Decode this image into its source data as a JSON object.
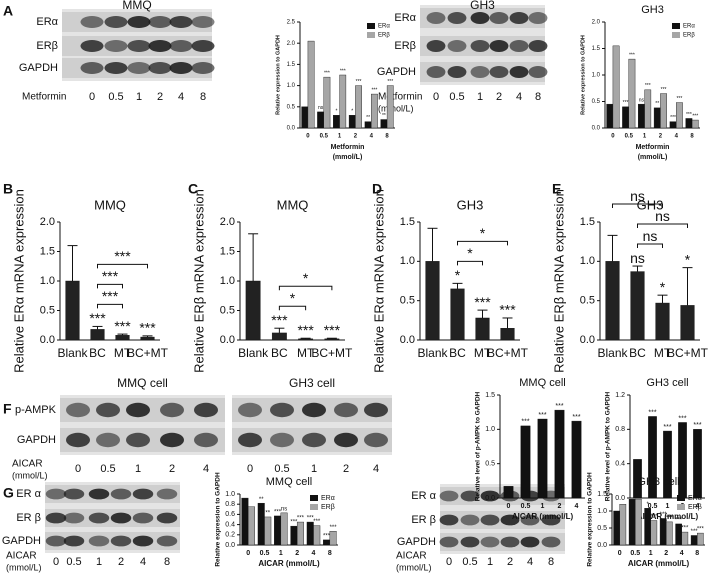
{
  "panel_letters": [
    "A",
    "B",
    "C",
    "D",
    "E",
    "F",
    "G"
  ],
  "blots": [
    {
      "title": "MMQ",
      "rows": [
        "ERα",
        "ERβ",
        "GAPDH"
      ],
      "treatment": [
        "Metformin"
      ],
      "lanes": [
        "0",
        "0.5",
        "1",
        "2",
        "4",
        "8"
      ]
    },
    {
      "title": "GH3",
      "rows": [
        "ERα",
        "ERβ",
        "GAPDH"
      ],
      "treatment": [
        "Metformin",
        "(mmol/L)"
      ],
      "lanes": [
        "0",
        "0.5",
        "1",
        "2",
        "4",
        "8"
      ]
    },
    {
      "title": "MMQ cell",
      "rows": [
        "p-AMPK",
        "GAPDH"
      ],
      "treatment": [
        "AICAR",
        "(mmol/L)"
      ],
      "lanes": [
        "0",
        "0.5",
        "1",
        "2",
        "4"
      ]
    },
    {
      "title": "GH3 cell",
      "lanes": [
        "0",
        "0.5",
        "1",
        "2",
        "4"
      ]
    },
    {
      "rows": [
        "ER α",
        "ER β",
        "GAPDH"
      ],
      "treatment": [
        "AICAR",
        "(mmol/L)"
      ],
      "lanes": [
        "0",
        "0.5",
        "1",
        "2",
        "4",
        "8"
      ]
    },
    {
      "rows": [
        "ER α",
        "ER β",
        "GAPDH"
      ],
      "treatment": [
        "AICAR",
        "(mmol/L)"
      ],
      "lanes": [
        "0",
        "0.5",
        "1",
        "2",
        "4",
        "8"
      ]
    }
  ],
  "chart_data": [
    {
      "type": "bar",
      "ylabel": "Relative expression to GAPDH",
      "xlabel": [
        "Metformin",
        "(mmol/L)"
      ],
      "categories": [
        "0",
        "0.5",
        "1",
        "2",
        "4",
        "8"
      ],
      "series": [
        {
          "name": "ERα",
          "color": "#111111",
          "values": [
            0.5,
            0.38,
            0.3,
            0.3,
            0.15,
            0.2
          ],
          "sig": [
            null,
            "ns",
            "*",
            "*",
            "**",
            "**"
          ]
        },
        {
          "name": "ERβ",
          "color": "#a6a6a6",
          "values": [
            2.05,
            1.2,
            1.25,
            1.0,
            0.8,
            1.0
          ],
          "sig": [
            null,
            "***",
            "***",
            "***",
            "***",
            "***"
          ]
        }
      ],
      "ylim": [
        0,
        2.5
      ],
      "yticks": [
        {
          "value": 0,
          "label": "0.0"
        },
        0.5,
        {
          "value": 1,
          "label": "1.0"
        },
        1.5,
        {
          "value": 2,
          "label": "2.0"
        },
        2.5
      ]
    },
    {
      "type": "bar",
      "title": "GH3",
      "ylabel": "Relative expression to GAPDH",
      "xlabel": [
        "Metformin",
        "(mmol/L)"
      ],
      "categories": [
        "0",
        "0.5",
        "1",
        "2",
        "4",
        "8"
      ],
      "series": [
        {
          "name": "ERα",
          "color": "#111111",
          "values": [
            0.45,
            0.4,
            0.45,
            0.38,
            0.12,
            0.18
          ],
          "sig": [
            null,
            "***",
            "ns",
            "**",
            "***",
            "***"
          ]
        },
        {
          "name": "ERβ",
          "color": "#a6a6a6",
          "values": [
            1.55,
            1.3,
            0.72,
            0.65,
            0.48,
            0.15
          ],
          "sig": [
            null,
            "***",
            "***",
            "***",
            "***",
            "***"
          ]
        }
      ],
      "ylim": [
        0,
        2
      ],
      "yticks": [
        {
          "value": 0,
          "label": "0.0"
        },
        0.5,
        {
          "value": 1,
          "label": "1.0"
        },
        1.5,
        {
          "value": 2,
          "label": "2.0"
        }
      ]
    },
    {
      "type": "bar",
      "title": "MMQ",
      "ylabel": "Relative ERα mRNA expression",
      "categories": [
        "Blank",
        "BC",
        "MT",
        "BC+MT"
      ],
      "color": "#222222",
      "values": [
        1.0,
        0.18,
        0.08,
        0.05
      ],
      "errors": [
        0.6,
        0.05,
        0.02,
        0.02
      ],
      "sig": [
        null,
        "***",
        "***",
        "***"
      ],
      "brackets": [
        {
          "from": 1,
          "to": 2,
          "label": "***"
        },
        {
          "from": 1,
          "to": 2,
          "label": "***"
        },
        {
          "from": 1,
          "to": 3,
          "label": "***"
        }
      ],
      "ylim": [
        0,
        2
      ],
      "yticks": [
        {
          "value": 0,
          "label": "0.0"
        },
        0.5,
        {
          "value": 1,
          "label": "1.0"
        },
        1.5,
        {
          "value": 2,
          "label": "2.0"
        }
      ]
    },
    {
      "type": "bar",
      "title": "MMQ",
      "ylabel": "Relative ERβ mRNA expression",
      "categories": [
        "Blank",
        "BC",
        "MT",
        "BC+MT"
      ],
      "color": "#222222",
      "values": [
        1.0,
        0.12,
        0.02,
        0.02
      ],
      "errors": [
        0.8,
        0.08,
        0.01,
        0.01
      ],
      "sig": [
        null,
        "***",
        "***",
        "***"
      ],
      "brackets": [
        {
          "from": 1,
          "to": 2,
          "label": "*"
        },
        {
          "from": 1,
          "to": 3,
          "label": "*"
        }
      ],
      "ylim": [
        0,
        2
      ],
      "yticks": [
        {
          "value": 0,
          "label": "0.0"
        },
        0.5,
        {
          "value": 1,
          "label": "1.0"
        },
        1.5,
        {
          "value": 2,
          "label": "2.0"
        }
      ]
    },
    {
      "type": "bar",
      "title": "GH3",
      "ylabel": "Relative ERα mRNA expression",
      "categories": [
        "Blank",
        "BC",
        "MT",
        "BC+MT"
      ],
      "color": "#222222",
      "values": [
        1.0,
        0.65,
        0.28,
        0.15
      ],
      "errors": [
        0.42,
        0.07,
        0.1,
        0.13
      ],
      "sig": [
        null,
        "*",
        "***",
        "***"
      ],
      "brackets": [
        {
          "from": 1,
          "to": 2,
          "label": "*"
        },
        {
          "from": 1,
          "to": 3,
          "label": "*"
        }
      ],
      "ylim": [
        0,
        1.5
      ],
      "yticks": [
        {
          "value": 0,
          "label": "0.0"
        },
        0.5,
        {
          "value": 1,
          "label": "1.0"
        },
        1.5
      ]
    },
    {
      "type": "bar",
      "title": "GH3",
      "ylabel": "Relative ERβ mRNA expression",
      "categories": [
        "Blank",
        "BC",
        "MT",
        "BC+MT"
      ],
      "color": "#222222",
      "values": [
        1.0,
        0.87,
        0.47,
        0.44
      ],
      "errors": [
        0.33,
        0.07,
        0.1,
        0.48
      ],
      "sig": [
        null,
        "ns",
        "*",
        "*"
      ],
      "brackets": [
        {
          "from": 1,
          "to": 2,
          "label": "ns"
        },
        {
          "from": 1,
          "to": 3,
          "label": "ns"
        },
        {
          "from": 0,
          "to": 2,
          "label": "ns"
        }
      ],
      "ylim": [
        0,
        1.5
      ],
      "yticks": [
        {
          "value": 0,
          "label": "0.0"
        },
        0.5,
        {
          "value": 1,
          "label": "1.0"
        },
        1.5
      ]
    },
    {
      "type": "bar",
      "title": "MMQ cell",
      "ylabel": "Relative level of p-AMPK to GAPDH",
      "xlabel": [
        "AICAR (mmol/L)"
      ],
      "categories": [
        "0",
        "0.5",
        "1",
        "2",
        "4"
      ],
      "color": "#111111",
      "values": [
        0.17,
        1.05,
        1.15,
        1.28,
        1.12
      ],
      "sig": [
        null,
        "***",
        "***",
        "***",
        "***"
      ],
      "ylim": [
        0,
        1.5
      ],
      "yticks": [
        {
          "value": 0,
          "label": "0.0"
        },
        0.5,
        {
          "value": 1,
          "label": "1.0"
        },
        1.5
      ]
    },
    {
      "type": "bar",
      "title": "GH3 cell",
      "ylabel": "Relative level of p-AMPK to GAPDH",
      "xlabel": [
        "AICAR (mmol/L)"
      ],
      "categories": [
        "0",
        "0.5",
        "1",
        "2",
        "4"
      ],
      "color": "#111111",
      "values": [
        0.45,
        0.95,
        0.78,
        0.88,
        0.8
      ],
      "sig": [
        null,
        "***",
        "***",
        "***",
        "***"
      ],
      "ylim": [
        0,
        1.2
      ],
      "yticks": [
        {
          "value": 0,
          "label": "0.0"
        },
        0.4,
        0.8,
        1.2
      ]
    },
    {
      "type": "bar",
      "title": "MMQ cell",
      "ylabel": "Relative expression to GAPDH",
      "xlabel": [
        "AICAR (mmol/L)"
      ],
      "categories": [
        "0",
        "0.5",
        "1",
        "2",
        "4",
        "8"
      ],
      "series": [
        {
          "name": "ERα",
          "color": "#111111",
          "values": [
            0.92,
            0.82,
            0.57,
            0.37,
            0.45,
            0.1
          ],
          "sig": [
            null,
            "**",
            "***",
            "***",
            "***",
            "***"
          ]
        },
        {
          "name": "ERβ",
          "color": "#a6a6a6",
          "values": [
            0.75,
            0.55,
            0.63,
            0.45,
            0.38,
            0.27
          ],
          "sig": [
            null,
            "**",
            "ns",
            "***",
            "***",
            "***"
          ]
        }
      ],
      "ylim": [
        0,
        1
      ],
      "yticks": [
        {
          "value": 0,
          "label": "0.0"
        },
        0.2,
        0.4,
        0.6,
        0.8,
        {
          "value": 1,
          "label": "1.0"
        }
      ]
    },
    {
      "type": "bar",
      "title": "GH3 cell",
      "ylabel": "Relative expression to GAPDH",
      "xlabel": [
        "AICAR (mmol/L)"
      ],
      "categories": [
        "0",
        "0.5",
        "1",
        "2",
        "4",
        "8"
      ],
      "series": [
        {
          "name": "ERα",
          "color": "#111111",
          "values": [
            1.0,
            1.35,
            1.08,
            0.78,
            0.62,
            0.28
          ],
          "sig": [
            null,
            null,
            "*",
            "***",
            "***",
            "***"
          ]
        },
        {
          "name": "ERβ",
          "color": "#a6a6a6",
          "values": [
            1.2,
            1.35,
            0.72,
            0.68,
            0.38,
            0.35
          ],
          "sig": [
            null,
            null,
            "***",
            "***",
            "***",
            "***"
          ]
        }
      ],
      "ylim": [
        0,
        1.5
      ],
      "yticks": [
        {
          "value": 0,
          "label": "0.0"
        },
        0.5,
        {
          "value": 1,
          "label": "1.0"
        },
        1.5
      ]
    }
  ]
}
